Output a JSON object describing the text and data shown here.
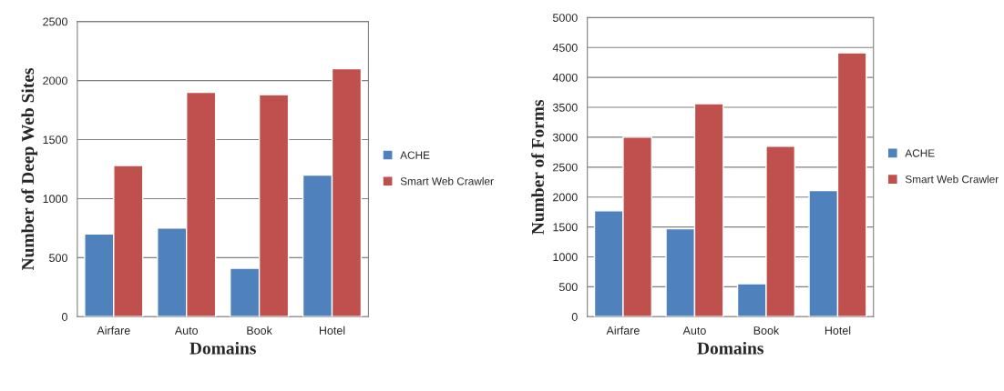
{
  "chart_data": [
    {
      "type": "bar",
      "xlabel": "Domains",
      "ylabel": "Number of Deep Web Sites",
      "categories": [
        "Airfare",
        "Auto",
        "Book",
        "Hotel"
      ],
      "series": [
        {
          "name": "ACHE",
          "color": "#4f81bd",
          "values": [
            700,
            750,
            410,
            1200
          ]
        },
        {
          "name": "Smart Web Crawler",
          "color": "#c0504d",
          "values": [
            1280,
            1900,
            1880,
            2100
          ]
        }
      ],
      "ylim": [
        0,
        2500
      ],
      "yticks": [
        0,
        500,
        1000,
        1500,
        2000,
        2500
      ],
      "grid": "y",
      "legend": "right"
    },
    {
      "type": "bar",
      "xlabel": "Domains",
      "ylabel": "Number of Forms",
      "categories": [
        "Airfare",
        "Auto",
        "Book",
        "Hotel"
      ],
      "series": [
        {
          "name": "ACHE",
          "color": "#4f81bd",
          "values": [
            1770,
            1470,
            550,
            2110
          ]
        },
        {
          "name": "Smart Web Crawler",
          "color": "#c0504d",
          "values": [
            3000,
            3560,
            2850,
            4410
          ]
        }
      ],
      "ylim": [
        0,
        5000
      ],
      "yticks": [
        0,
        500,
        1000,
        1500,
        2000,
        2500,
        3000,
        3500,
        4000,
        4500,
        5000
      ],
      "grid": "y",
      "legend": "right"
    }
  ]
}
